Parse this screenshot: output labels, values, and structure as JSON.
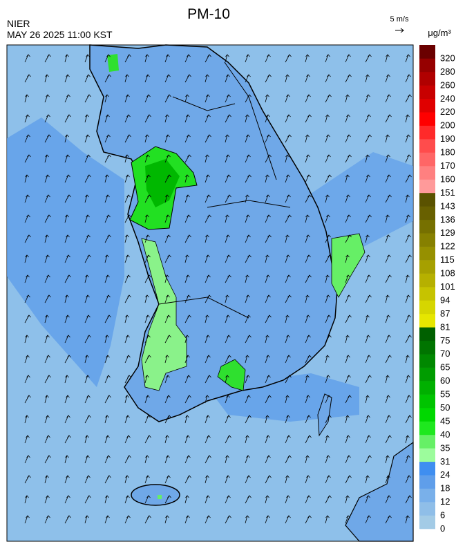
{
  "header": {
    "title": "PM-10",
    "source": "NIER",
    "datetime": "MAY 26 2025 11:00 KST",
    "wind_scale": "5 m/s"
  },
  "legend": {
    "unit": "μg/m³",
    "levels": [
      0,
      6,
      12,
      18,
      24,
      31,
      35,
      40,
      45,
      50,
      55,
      60,
      65,
      70,
      75,
      81,
      87,
      94,
      101,
      108,
      115,
      122,
      129,
      136,
      143,
      151,
      160,
      170,
      180,
      190,
      200,
      220,
      240,
      260,
      280,
      320
    ],
    "colors": [
      "#a3cbe6",
      "#8fbee8",
      "#79b0ea",
      "#5f9eea",
      "#3f8ef0",
      "#9cfc9c",
      "#66f066",
      "#1ee81e",
      "#00d800",
      "#00c400",
      "#00b000",
      "#009c00",
      "#008800",
      "#007400",
      "#006000",
      "#e6e600",
      "#d6d600",
      "#c6c300",
      "#b6b000",
      "#a6a000",
      "#969000",
      "#868000",
      "#767000",
      "#686000",
      "#5a5200",
      "#ff9a9a",
      "#ff8080",
      "#ff6666",
      "#ff4c4c",
      "#ff2a2a",
      "#ff0000",
      "#e00000",
      "#c80000",
      "#b00000",
      "#960000",
      "#6a0000"
    ]
  }
}
